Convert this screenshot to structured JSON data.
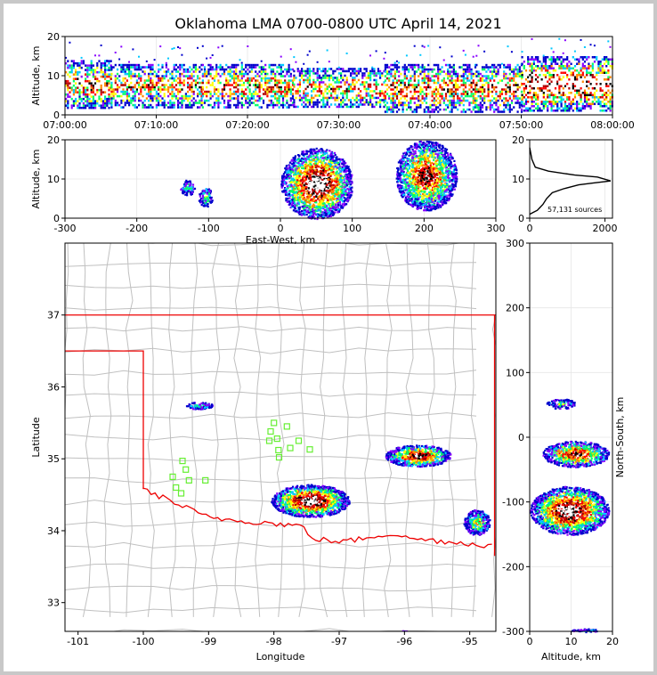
{
  "title": "Oklahoma LMA 0700-0800 UTC April 14, 2021",
  "colors": {
    "density": [
      "#0000cc",
      "#8800ff",
      "#00c8ff",
      "#00ff66",
      "#ffff00",
      "#ff8800",
      "#ff0000",
      "#b00000",
      "#000000",
      "#ffffff"
    ],
    "state_border": "#ee0000",
    "county_lines": "#c0c0c0",
    "station_marker": "#66ee33",
    "profile_line": "#000000"
  },
  "chart_data": [
    {
      "id": "time-height",
      "type": "heatmap",
      "xlabel": "",
      "ylabel": "Altitude, km",
      "xticks": [
        "07:00:00",
        "07:10:00",
        "07:20:00",
        "07:30:00",
        "07:40:00",
        "07:50:00",
        "08:00:00"
      ],
      "xlim_minutes": [
        0,
        60
      ],
      "ylim": [
        0,
        20
      ],
      "yticks": [
        0,
        10,
        20
      ],
      "activity": [
        {
          "t": [
            0,
            5
          ],
          "alt": [
            2,
            14
          ],
          "intensity": 0.7
        },
        {
          "t": [
            5,
            15
          ],
          "alt": [
            2,
            13
          ],
          "intensity": 0.6
        },
        {
          "t": [
            15,
            25
          ],
          "alt": [
            2,
            13
          ],
          "intensity": 0.65
        },
        {
          "t": [
            25,
            35
          ],
          "alt": [
            2,
            12
          ],
          "intensity": 0.6
        },
        {
          "t": [
            35,
            45
          ],
          "alt": [
            1,
            13
          ],
          "intensity": 0.75
        },
        {
          "t": [
            45,
            50
          ],
          "alt": [
            1,
            13
          ],
          "intensity": 0.7
        },
        {
          "t": [
            50,
            60
          ],
          "alt": [
            1,
            15
          ],
          "intensity": 0.95
        }
      ]
    },
    {
      "id": "east-west-height",
      "type": "heatmap",
      "xlabel": "East-West, km",
      "ylabel": "Altitude, km",
      "xlim": [
        -300,
        300
      ],
      "xticks": [
        -300,
        -200,
        -100,
        0,
        100,
        200,
        300
      ],
      "ylim": [
        0,
        20
      ],
      "yticks": [
        0,
        10,
        20
      ],
      "clusters": [
        {
          "x": [
            -140,
            -120
          ],
          "alt": [
            6,
            10
          ],
          "intensity": 0.3
        },
        {
          "x": [
            -115,
            -95
          ],
          "alt": [
            3,
            8
          ],
          "intensity": 0.4
        },
        {
          "x": [
            0,
            100
          ],
          "alt": [
            0,
            18
          ],
          "intensity": 1.0
        },
        {
          "x": [
            160,
            245
          ],
          "alt": [
            2,
            20
          ],
          "intensity": 0.8
        }
      ]
    },
    {
      "id": "altitude-histogram",
      "type": "line",
      "xlim": [
        0,
        2200
      ],
      "xticks": [
        0,
        2000
      ],
      "ylim": [
        0,
        20
      ],
      "yticks": [
        0,
        10,
        20
      ],
      "annotation": "57,131 sources",
      "points": [
        [
          0,
          18
        ],
        [
          60,
          15
        ],
        [
          150,
          13
        ],
        [
          500,
          12
        ],
        [
          1200,
          11
        ],
        [
          1800,
          10.5
        ],
        [
          2150,
          9.5
        ],
        [
          1700,
          9
        ],
        [
          1300,
          8.5
        ],
        [
          900,
          7.5
        ],
        [
          600,
          6.5
        ],
        [
          450,
          5
        ],
        [
          350,
          3.5
        ],
        [
          250,
          2.5
        ],
        [
          200,
          2
        ],
        [
          100,
          1.5
        ],
        [
          0,
          1
        ]
      ]
    },
    {
      "id": "plan-view",
      "type": "heatmap",
      "xlabel": "Longitude",
      "ylabel": "Latitude",
      "xlim": [
        -101.2,
        -94.6
      ],
      "ylim": [
        32.6,
        38
      ],
      "xticks": [
        -101,
        -100,
        -99,
        -98,
        -97,
        -96,
        -95
      ],
      "yticks": [
        33,
        34,
        35,
        36,
        37
      ],
      "stations": [
        [
          -98.0,
          35.5
        ],
        [
          -98.05,
          35.38
        ],
        [
          -98.07,
          35.25
        ],
        [
          -97.95,
          35.28
        ],
        [
          -97.8,
          35.45
        ],
        [
          -97.75,
          35.15
        ],
        [
          -97.62,
          35.25
        ],
        [
          -97.45,
          35.13
        ],
        [
          -97.93,
          35.12
        ],
        [
          -97.92,
          35.02
        ],
        [
          -99.4,
          34.97
        ],
        [
          -99.35,
          34.85
        ],
        [
          -99.55,
          34.75
        ],
        [
          -99.3,
          34.7
        ],
        [
          -99.05,
          34.7
        ],
        [
          -99.5,
          34.6
        ],
        [
          -99.42,
          34.52
        ]
      ],
      "cells": [
        {
          "lon": [
            -99.35,
            -98.95
          ],
          "lat": [
            35.7,
            35.8
          ],
          "intensity": 0.3
        },
        {
          "lon": [
            -98.05,
            -96.85
          ],
          "lat": [
            34.2,
            34.65
          ],
          "intensity": 1.0
        },
        {
          "lon": [
            -96.3,
            -95.3
          ],
          "lat": [
            34.9,
            35.2
          ],
          "intensity": 0.85
        },
        {
          "lon": [
            -95.1,
            -94.7
          ],
          "lat": [
            33.95,
            34.3
          ],
          "intensity": 0.5
        },
        {
          "lon": [
            -96.1,
            -95.95
          ],
          "lat": [
            32.55,
            32.62
          ],
          "intensity": 0.2
        }
      ]
    },
    {
      "id": "north-south-height",
      "type": "heatmap",
      "xlabel": "Altitude, km",
      "ylabel": "North-South, km",
      "xlim": [
        0,
        20
      ],
      "xticks": [
        0,
        10,
        20
      ],
      "ylim": [
        -300,
        300
      ],
      "yticks": [
        -300,
        -200,
        -100,
        0,
        100,
        200,
        300
      ],
      "clusters": [
        {
          "ns": [
            45,
            60
          ],
          "alt": [
            4,
            11
          ],
          "intensity": 0.3
        },
        {
          "ns": [
            -45,
            -5
          ],
          "alt": [
            3,
            19
          ],
          "intensity": 0.8
        },
        {
          "ns": [
            -150,
            -75
          ],
          "alt": [
            0,
            19
          ],
          "intensity": 1.0
        },
        {
          "ns": [
            -300,
            -295
          ],
          "alt": [
            10,
            17
          ],
          "intensity": 0.2
        }
      ]
    }
  ]
}
